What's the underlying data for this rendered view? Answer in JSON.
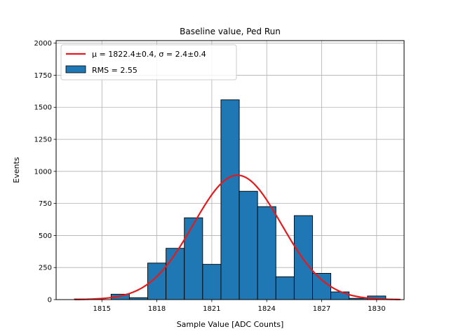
{
  "chart_data": {
    "type": "bar",
    "title": "Baseline value, Ped Run",
    "xlabel": "Sample Value [ADC Counts]",
    "ylabel": "Events",
    "xlim": [
      1812.5,
      1831.5
    ],
    "ylim": [
      0,
      2020
    ],
    "xticks": [
      1815,
      1818,
      1821,
      1824,
      1827,
      1830
    ],
    "yticks": [
      0,
      250,
      500,
      750,
      1000,
      1250,
      1500,
      1750,
      2000
    ],
    "grid": true,
    "bin_width": 1,
    "bins": [
      {
        "left": 1813.5,
        "value": 5
      },
      {
        "left": 1814.5,
        "value": 0
      },
      {
        "left": 1815.5,
        "value": 42
      },
      {
        "left": 1816.5,
        "value": 15
      },
      {
        "left": 1817.5,
        "value": 285
      },
      {
        "left": 1818.5,
        "value": 400
      },
      {
        "left": 1819.5,
        "value": 638
      },
      {
        "left": 1820.5,
        "value": 275
      },
      {
        "left": 1821.5,
        "value": 1558
      },
      {
        "left": 1822.5,
        "value": 845
      },
      {
        "left": 1823.5,
        "value": 725
      },
      {
        "left": 1824.5,
        "value": 178
      },
      {
        "left": 1825.5,
        "value": 655
      },
      {
        "left": 1826.5,
        "value": 205
      },
      {
        "left": 1827.5,
        "value": 60
      },
      {
        "left": 1828.5,
        "value": 10
      },
      {
        "left": 1829.5,
        "value": 28
      },
      {
        "left": 1830.5,
        "value": 0
      }
    ],
    "fit": {
      "mu": 1822.4,
      "sigma": 2.4,
      "amplitude": 970,
      "x_range": [
        1813.5,
        1831.3
      ],
      "color": "#e41a1c"
    },
    "bar_color": "#1f77b4",
    "legend": {
      "position": "top-left",
      "entries": [
        {
          "kind": "line",
          "label": "μ = 1822.4±0.4, σ = 2.4±0.4"
        },
        {
          "kind": "patch",
          "label": "RMS = 2.55"
        }
      ]
    }
  }
}
